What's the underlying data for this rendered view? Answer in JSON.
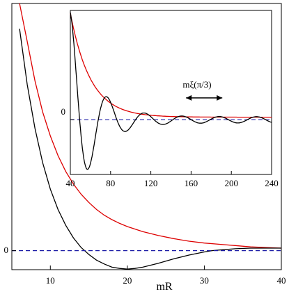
{
  "chart_data": [
    {
      "type": "line",
      "panel": "main",
      "xlabel": "mR",
      "ylabel": "",
      "xlim": [
        5,
        40
      ],
      "ylim": [
        -0.3,
        3.9
      ],
      "x_ticks": [
        10,
        20,
        30,
        40
      ],
      "y_ticks": [
        {
          "value": 0,
          "label": "0"
        }
      ],
      "grid": false,
      "series": [
        {
          "color": "#dd0000",
          "points": [
            [
              6.0,
              4.0
            ],
            [
              7,
              3.3
            ],
            [
              8,
              2.68
            ],
            [
              9,
              2.19
            ],
            [
              10,
              1.81
            ],
            [
              11,
              1.5
            ],
            [
              12,
              1.25
            ],
            [
              13,
              1.05
            ],
            [
              14,
              0.89
            ],
            [
              15,
              0.76
            ],
            [
              16,
              0.65
            ],
            [
              17,
              0.56
            ],
            [
              18,
              0.49
            ],
            [
              19,
              0.43
            ],
            [
              20,
              0.38
            ],
            [
              22,
              0.3
            ],
            [
              24,
              0.24
            ],
            [
              26,
              0.19
            ],
            [
              28,
              0.15
            ],
            [
              30,
              0.12
            ],
            [
              32,
              0.1
            ],
            [
              34,
              0.08
            ],
            [
              36,
              0.06
            ],
            [
              38,
              0.05
            ],
            [
              40,
              0.04
            ]
          ]
        },
        {
          "color": "#000000",
          "points": [
            [
              6.0,
              3.5
            ],
            [
              7,
              2.62
            ],
            [
              8,
              1.93
            ],
            [
              9,
              1.39
            ],
            [
              10,
              0.97
            ],
            [
              11,
              0.65
            ],
            [
              12,
              0.4
            ],
            [
              13,
              0.2
            ],
            [
              14,
              0.05
            ],
            [
              15,
              -0.06
            ],
            [
              16,
              -0.15
            ],
            [
              17,
              -0.21
            ],
            [
              18,
              -0.26
            ],
            [
              19,
              -0.28
            ],
            [
              20,
              -0.29
            ],
            [
              21,
              -0.28
            ],
            [
              22,
              -0.26
            ],
            [
              24,
              -0.2
            ],
            [
              26,
              -0.13
            ],
            [
              28,
              -0.07
            ],
            [
              30,
              -0.02
            ],
            [
              31,
              0.0
            ],
            [
              32,
              0.01
            ],
            [
              34,
              0.03
            ],
            [
              36,
              0.04
            ],
            [
              38,
              0.04
            ],
            [
              40,
              0.04
            ]
          ]
        },
        {
          "color": "#1a1aa6",
          "dashed": true,
          "points": [
            [
              5,
              0
            ],
            [
              40,
              0
            ]
          ]
        }
      ]
    },
    {
      "type": "line",
      "panel": "inset",
      "xlabel": "",
      "ylabel": "",
      "xlim": [
        40,
        240
      ],
      "ylim": [
        -1.05,
        2.1
      ],
      "x_ticks": [
        40,
        80,
        120,
        160,
        200,
        240
      ],
      "y_ticks": [
        {
          "value": 0,
          "label": "0"
        }
      ],
      "grid": false,
      "annotations": [
        {
          "text": "mξ(π/3)",
          "arrow_x": [
            155,
            191
          ],
          "y": 0.42
        }
      ],
      "envelope": {
        "color": "#dd0000",
        "amplitude": 2.0,
        "x0": 40,
        "decay_length": 20.0,
        "offset": 0.05
      },
      "oscillation": {
        "color": "#000000",
        "period": 37.0,
        "envelope_decay_length": 22.0,
        "envelope_amplitude": 2.0,
        "x0": 40
      }
    }
  ],
  "colors": {
    "red_curve": "#dd0000",
    "black_curve": "#000000",
    "zero_line": "#1a1aa6",
    "frame": "#000000"
  }
}
